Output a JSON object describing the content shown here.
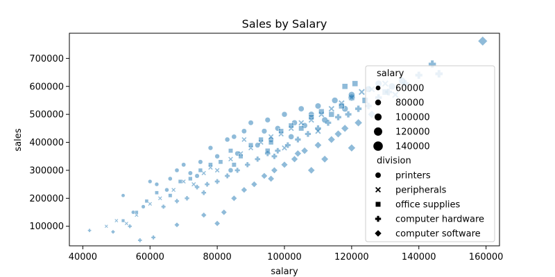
{
  "chart_data": {
    "type": "scatter",
    "title": "Sales by Salary",
    "xlabel": "salary",
    "ylabel": "sales",
    "xlim": [
      36000,
      164000
    ],
    "ylim": [
      30000,
      790000
    ],
    "xticks": [
      40000,
      60000,
      80000,
      100000,
      120000,
      140000,
      160000
    ],
    "yticks": [
      100000,
      200000,
      300000,
      400000,
      500000,
      600000,
      700000
    ],
    "point_color": "#1f77b4",
    "point_alpha": 0.5,
    "grid": false,
    "legend_placement": "lower right",
    "legend": {
      "size_title": "salary",
      "size_entries": [
        "60000",
        "80000",
        "100000",
        "120000",
        "140000"
      ],
      "style_title": "division",
      "style_entries": [
        {
          "label": "printers",
          "marker": "circle"
        },
        {
          "label": "peripherals",
          "marker": "x"
        },
        {
          "label": "office supplies",
          "marker": "square"
        },
        {
          "label": "computer hardware",
          "marker": "plus"
        },
        {
          "label": "computer software",
          "marker": "diamond"
        }
      ]
    },
    "series": [
      {
        "name": "printers",
        "marker": "circle",
        "points": [
          [
            52000,
            210000
          ],
          [
            55000,
            150000
          ],
          [
            58000,
            170000
          ],
          [
            60000,
            260000
          ],
          [
            62000,
            250000
          ],
          [
            65000,
            230000
          ],
          [
            68000,
            300000
          ],
          [
            70000,
            320000
          ],
          [
            72000,
            290000
          ],
          [
            75000,
            330000
          ],
          [
            78000,
            380000
          ],
          [
            80000,
            350000
          ],
          [
            83000,
            410000
          ],
          [
            85000,
            420000
          ],
          [
            88000,
            440000
          ],
          [
            90000,
            470000
          ],
          [
            92000,
            390000
          ],
          [
            95000,
            480000
          ],
          [
            98000,
            450000
          ],
          [
            100000,
            500000
          ],
          [
            103000,
            470000
          ],
          [
            105000,
            520000
          ],
          [
            108000,
            500000
          ],
          [
            110000,
            530000
          ],
          [
            112000,
            480000
          ],
          [
            115000,
            550000
          ],
          [
            118000,
            520000
          ],
          [
            120000,
            570000
          ],
          [
            125000,
            590000
          ],
          [
            128000,
            610000
          ],
          [
            132000,
            600000
          ],
          [
            135000,
            620000
          ],
          [
            66000,
            270000
          ],
          [
            74000,
            280000
          ],
          [
            86000,
            360000
          ],
          [
            96000,
            410000
          ],
          [
            106000,
            460000
          ],
          [
            84000,
            300000
          ],
          [
            94000,
            440000
          ],
          [
            102000,
            420000
          ]
        ]
      },
      {
        "name": "peripherals",
        "marker": "x",
        "points": [
          [
            47000,
            100000
          ],
          [
            50000,
            120000
          ],
          [
            53000,
            110000
          ],
          [
            56000,
            140000
          ],
          [
            60000,
            180000
          ],
          [
            63000,
            200000
          ],
          [
            67000,
            230000
          ],
          [
            70000,
            260000
          ],
          [
            73000,
            250000
          ],
          [
            76000,
            290000
          ],
          [
            80000,
            300000
          ],
          [
            84000,
            340000
          ],
          [
            87000,
            360000
          ],
          [
            90000,
            380000
          ],
          [
            93000,
            400000
          ],
          [
            96000,
            420000
          ],
          [
            99000,
            430000
          ],
          [
            102000,
            450000
          ],
          [
            105000,
            470000
          ],
          [
            108000,
            480000
          ],
          [
            111000,
            500000
          ],
          [
            114000,
            520000
          ],
          [
            117000,
            540000
          ],
          [
            120000,
            560000
          ],
          [
            123000,
            580000
          ],
          [
            126000,
            590000
          ],
          [
            130000,
            610000
          ],
          [
            133000,
            570000
          ],
          [
            100000,
            380000
          ],
          [
            88000,
            410000
          ],
          [
            78000,
            310000
          ],
          [
            110000,
            440000
          ]
        ]
      },
      {
        "name": "office supplies",
        "marker": "square",
        "points": [
          [
            52000,
            120000
          ],
          [
            56000,
            150000
          ],
          [
            59000,
            190000
          ],
          [
            62000,
            220000
          ],
          [
            66000,
            210000
          ],
          [
            69000,
            260000
          ],
          [
            72000,
            270000
          ],
          [
            75000,
            300000
          ],
          [
            78000,
            320000
          ],
          [
            81000,
            330000
          ],
          [
            84000,
            370000
          ],
          [
            87000,
            350000
          ],
          [
            90000,
            390000
          ],
          [
            93000,
            410000
          ],
          [
            96000,
            400000
          ],
          [
            99000,
            440000
          ],
          [
            102000,
            460000
          ],
          [
            105000,
            450000
          ],
          [
            108000,
            490000
          ],
          [
            111000,
            510000
          ],
          [
            114000,
            500000
          ],
          [
            117000,
            530000
          ],
          [
            121000,
            610000
          ],
          [
            124000,
            550000
          ],
          [
            130000,
            580000
          ],
          [
            118000,
            600000
          ],
          [
            95000,
            370000
          ],
          [
            85000,
            320000
          ]
        ]
      },
      {
        "name": "computer hardware",
        "marker": "plus",
        "points": [
          [
            42000,
            85000
          ],
          [
            54000,
            100000
          ],
          [
            57000,
            50000
          ],
          [
            61000,
            60000
          ],
          [
            64000,
            170000
          ],
          [
            68000,
            190000
          ],
          [
            71000,
            200000
          ],
          [
            74000,
            240000
          ],
          [
            77000,
            250000
          ],
          [
            80000,
            260000
          ],
          [
            83000,
            280000
          ],
          [
            86000,
            300000
          ],
          [
            89000,
            320000
          ],
          [
            92000,
            340000
          ],
          [
            95000,
            360000
          ],
          [
            98000,
            370000
          ],
          [
            101000,
            390000
          ],
          [
            104000,
            410000
          ],
          [
            107000,
            430000
          ],
          [
            110000,
            450000
          ],
          [
            113000,
            470000
          ],
          [
            116000,
            490000
          ],
          [
            119000,
            500000
          ],
          [
            122000,
            520000
          ],
          [
            125000,
            530000
          ],
          [
            128000,
            560000
          ],
          [
            131000,
            580000
          ],
          [
            136000,
            610000
          ],
          [
            140000,
            640000
          ],
          [
            144000,
            680000
          ],
          [
            146000,
            645000
          ],
          [
            120000,
            560000
          ],
          [
            97000,
            350000
          ],
          [
            76000,
            220000
          ]
        ]
      },
      {
        "name": "computer software",
        "marker": "diamond",
        "points": [
          [
            49000,
            80000
          ],
          [
            68000,
            105000
          ],
          [
            76000,
            140000
          ],
          [
            80000,
            110000
          ],
          [
            82000,
            150000
          ],
          [
            85000,
            200000
          ],
          [
            88000,
            230000
          ],
          [
            91000,
            250000
          ],
          [
            94000,
            280000
          ],
          [
            97000,
            300000
          ],
          [
            100000,
            320000
          ],
          [
            103000,
            340000
          ],
          [
            106000,
            370000
          ],
          [
            108000,
            300000
          ],
          [
            110000,
            390000
          ],
          [
            112000,
            340000
          ],
          [
            114000,
            410000
          ],
          [
            116000,
            430000
          ],
          [
            118000,
            450000
          ],
          [
            120000,
            380000
          ],
          [
            122000,
            470000
          ],
          [
            126000,
            500000
          ],
          [
            159000,
            762000
          ],
          [
            104000,
            360000
          ],
          [
            96000,
            270000
          ]
        ]
      }
    ]
  }
}
